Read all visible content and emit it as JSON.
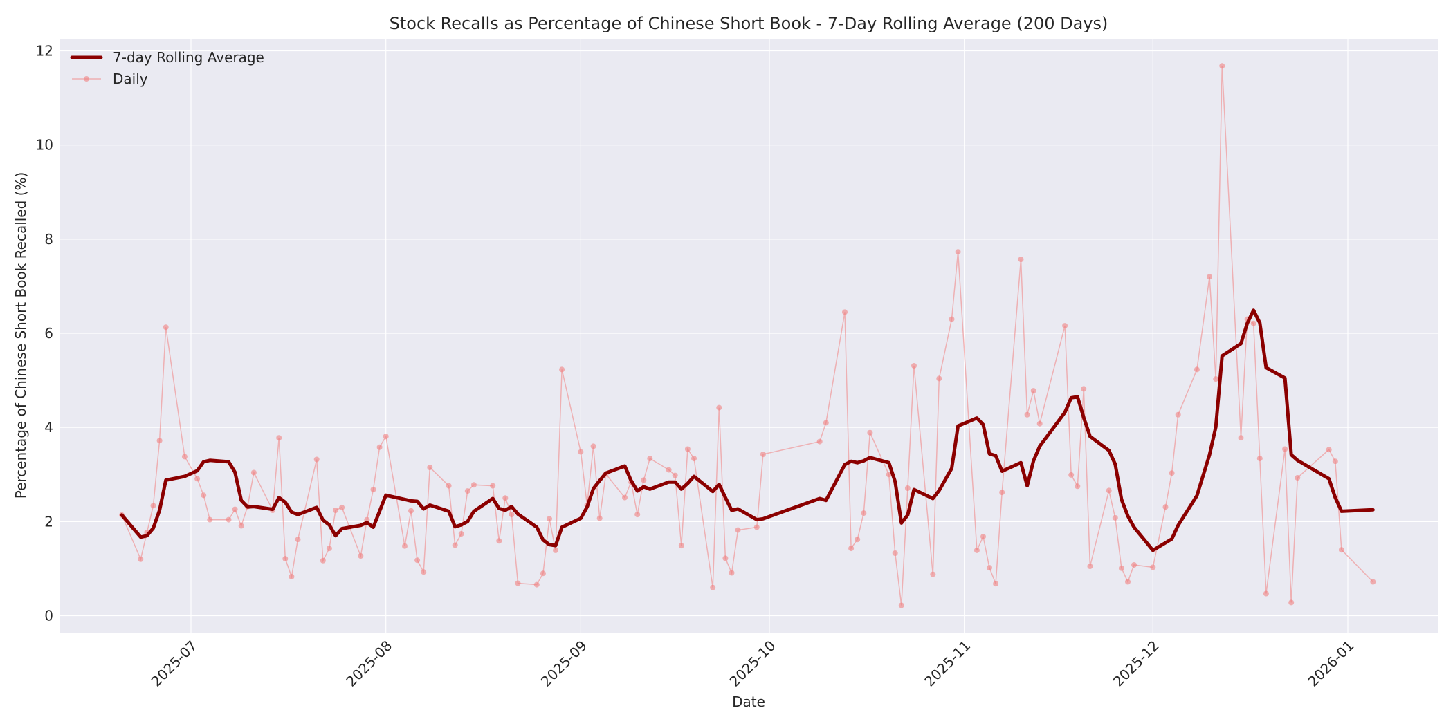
{
  "chart_data": {
    "type": "line",
    "title": "Stock Recalls as Percentage of Chinese Short Book - 7-Day Rolling Average (200 Days)",
    "xlabel": "Date",
    "ylabel": "Percentage of Chinese Short Book Recalled (%)",
    "ylim": [
      -0.35,
      12.25
    ],
    "yticks": [
      0,
      2,
      4,
      6,
      8,
      10,
      12
    ],
    "xticks": [
      {
        "label": "2025-07",
        "date": "2025-07-01"
      },
      {
        "label": "2025-08",
        "date": "2025-08-01"
      },
      {
        "label": "2025-09",
        "date": "2025-09-01"
      },
      {
        "label": "2025-10",
        "date": "2025-10-01"
      },
      {
        "label": "2025-11",
        "date": "2025-11-01"
      },
      {
        "label": "2025-12",
        "date": "2025-12-01"
      },
      {
        "label": "2026-01",
        "date": "2026-01-01"
      }
    ],
    "xlim": [
      "2025-06-10",
      "2026-01-14"
    ],
    "grid": true,
    "legend_position": "upper left",
    "series": [
      {
        "name": "7-day Rolling Average",
        "color": "#8B0000",
        "line_width": 5,
        "points": [
          [
            "2025-06-20",
            2.14
          ],
          [
            "2025-06-23",
            1.67
          ],
          [
            "2025-06-24",
            1.7
          ],
          [
            "2025-06-25",
            1.86
          ],
          [
            "2025-06-26",
            2.24
          ],
          [
            "2025-06-27",
            2.88
          ],
          [
            "2025-06-30",
            2.96
          ],
          [
            "2025-07-02",
            3.08
          ],
          [
            "2025-07-03",
            3.27
          ],
          [
            "2025-07-04",
            3.3
          ],
          [
            "2025-07-07",
            3.27
          ],
          [
            "2025-07-08",
            3.05
          ],
          [
            "2025-07-09",
            2.45
          ],
          [
            "2025-07-10",
            2.31
          ],
          [
            "2025-07-11",
            2.32
          ],
          [
            "2025-07-14",
            2.26
          ],
          [
            "2025-07-15",
            2.51
          ],
          [
            "2025-07-16",
            2.41
          ],
          [
            "2025-07-17",
            2.2
          ],
          [
            "2025-07-18",
            2.15
          ],
          [
            "2025-07-21",
            2.3
          ],
          [
            "2025-07-22",
            2.03
          ],
          [
            "2025-07-23",
            1.93
          ],
          [
            "2025-07-24",
            1.7
          ],
          [
            "2025-07-25",
            1.85
          ],
          [
            "2025-07-28",
            1.92
          ],
          [
            "2025-07-29",
            1.98
          ],
          [
            "2025-07-30",
            1.88
          ],
          [
            "2025-08-01",
            2.56
          ],
          [
            "2025-08-04",
            2.47
          ],
          [
            "2025-08-05",
            2.44
          ],
          [
            "2025-08-06",
            2.43
          ],
          [
            "2025-08-07",
            2.27
          ],
          [
            "2025-08-08",
            2.35
          ],
          [
            "2025-08-11",
            2.22
          ],
          [
            "2025-08-12",
            1.89
          ],
          [
            "2025-08-13",
            1.93
          ],
          [
            "2025-08-14",
            2.0
          ],
          [
            "2025-08-15",
            2.22
          ],
          [
            "2025-08-18",
            2.49
          ],
          [
            "2025-08-19",
            2.28
          ],
          [
            "2025-08-20",
            2.24
          ],
          [
            "2025-08-21",
            2.32
          ],
          [
            "2025-08-22",
            2.16
          ],
          [
            "2025-08-25",
            1.88
          ],
          [
            "2025-08-26",
            1.61
          ],
          [
            "2025-08-27",
            1.51
          ],
          [
            "2025-08-28",
            1.49
          ],
          [
            "2025-08-29",
            1.88
          ],
          [
            "2025-09-01",
            2.07
          ],
          [
            "2025-09-02",
            2.31
          ],
          [
            "2025-09-03",
            2.7
          ],
          [
            "2025-09-04",
            2.87
          ],
          [
            "2025-09-05",
            3.03
          ],
          [
            "2025-09-08",
            3.18
          ],
          [
            "2025-09-09",
            2.87
          ],
          [
            "2025-09-10",
            2.65
          ],
          [
            "2025-09-11",
            2.74
          ],
          [
            "2025-09-12",
            2.69
          ],
          [
            "2025-09-15",
            2.84
          ],
          [
            "2025-09-16",
            2.84
          ],
          [
            "2025-09-17",
            2.69
          ],
          [
            "2025-09-18",
            2.81
          ],
          [
            "2025-09-19",
            2.96
          ],
          [
            "2025-09-22",
            2.64
          ],
          [
            "2025-09-23",
            2.79
          ],
          [
            "2025-09-24",
            2.51
          ],
          [
            "2025-09-25",
            2.24
          ],
          [
            "2025-09-26",
            2.27
          ],
          [
            "2025-09-29",
            2.04
          ],
          [
            "2025-09-30",
            2.06
          ],
          [
            "2025-10-09",
            2.49
          ],
          [
            "2025-10-10",
            2.45
          ],
          [
            "2025-10-13",
            3.21
          ],
          [
            "2025-10-14",
            3.28
          ],
          [
            "2025-10-15",
            3.25
          ],
          [
            "2025-10-16",
            3.29
          ],
          [
            "2025-10-17",
            3.36
          ],
          [
            "2025-10-20",
            3.25
          ],
          [
            "2025-10-21",
            2.85
          ],
          [
            "2025-10-22",
            1.97
          ],
          [
            "2025-10-23",
            2.14
          ],
          [
            "2025-10-24",
            2.68
          ],
          [
            "2025-10-27",
            2.49
          ],
          [
            "2025-10-28",
            2.66
          ],
          [
            "2025-10-30",
            3.13
          ],
          [
            "2025-10-31",
            4.03
          ],
          [
            "2025-11-03",
            4.2
          ],
          [
            "2025-11-04",
            4.06
          ],
          [
            "2025-11-05",
            3.44
          ],
          [
            "2025-11-06",
            3.4
          ],
          [
            "2025-11-07",
            3.07
          ],
          [
            "2025-11-10",
            3.25
          ],
          [
            "2025-11-11",
            2.76
          ],
          [
            "2025-11-12",
            3.29
          ],
          [
            "2025-11-13",
            3.6
          ],
          [
            "2025-11-17",
            4.32
          ],
          [
            "2025-11-18",
            4.63
          ],
          [
            "2025-11-19",
            4.65
          ],
          [
            "2025-11-20",
            4.21
          ],
          [
            "2025-11-21",
            3.81
          ],
          [
            "2025-11-24",
            3.51
          ],
          [
            "2025-11-25",
            3.22
          ],
          [
            "2025-11-26",
            2.47
          ],
          [
            "2025-11-27",
            2.12
          ],
          [
            "2025-11-28",
            1.88
          ],
          [
            "2025-12-01",
            1.39
          ],
          [
            "2025-12-03",
            1.55
          ],
          [
            "2025-12-04",
            1.63
          ],
          [
            "2025-12-05",
            1.92
          ],
          [
            "2025-12-08",
            2.55
          ],
          [
            "2025-12-10",
            3.42
          ],
          [
            "2025-12-11",
            4.01
          ],
          [
            "2025-12-12",
            5.52
          ],
          [
            "2025-12-15",
            5.78
          ],
          [
            "2025-12-16",
            6.21
          ],
          [
            "2025-12-17",
            6.49
          ],
          [
            "2025-12-18",
            6.22
          ],
          [
            "2025-12-19",
            5.27
          ],
          [
            "2025-12-22",
            5.05
          ],
          [
            "2025-12-23",
            3.42
          ],
          [
            "2025-12-24",
            3.3
          ],
          [
            "2025-12-29",
            2.91
          ],
          [
            "2025-12-30",
            2.51
          ],
          [
            "2025-12-31",
            2.22
          ],
          [
            "2026-01-05",
            2.25
          ]
        ]
      },
      {
        "name": "Daily",
        "color": "#F08080",
        "line_width": 1.5,
        "marker": "circle",
        "points": [
          [
            "2025-06-20",
            2.14
          ],
          [
            "2025-06-23",
            1.2
          ],
          [
            "2025-06-24",
            1.77
          ],
          [
            "2025-06-25",
            2.34
          ],
          [
            "2025-06-26",
            3.72
          ],
          [
            "2025-06-27",
            6.13
          ],
          [
            "2025-06-30",
            3.38
          ],
          [
            "2025-07-02",
            2.91
          ],
          [
            "2025-07-03",
            2.56
          ],
          [
            "2025-07-04",
            2.04
          ],
          [
            "2025-07-07",
            2.04
          ],
          [
            "2025-07-08",
            2.26
          ],
          [
            "2025-07-09",
            1.91
          ],
          [
            "2025-07-10",
            2.32
          ],
          [
            "2025-07-11",
            3.04
          ],
          [
            "2025-07-14",
            2.24
          ],
          [
            "2025-07-15",
            3.78
          ],
          [
            "2025-07-16",
            1.21
          ],
          [
            "2025-07-17",
            0.83
          ],
          [
            "2025-07-18",
            1.62
          ],
          [
            "2025-07-21",
            3.32
          ],
          [
            "2025-07-22",
            1.17
          ],
          [
            "2025-07-23",
            1.43
          ],
          [
            "2025-07-24",
            2.24
          ],
          [
            "2025-07-25",
            2.3
          ],
          [
            "2025-07-28",
            1.27
          ],
          [
            "2025-07-29",
            2.04
          ],
          [
            "2025-07-30",
            2.68
          ],
          [
            "2025-07-31",
            3.58
          ],
          [
            "2025-08-01",
            3.81
          ],
          [
            "2025-08-04",
            1.48
          ],
          [
            "2025-08-05",
            2.23
          ],
          [
            "2025-08-06",
            1.18
          ],
          [
            "2025-08-07",
            0.93
          ],
          [
            "2025-08-08",
            3.15
          ],
          [
            "2025-08-11",
            2.76
          ],
          [
            "2025-08-12",
            1.5
          ],
          [
            "2025-08-13",
            1.74
          ],
          [
            "2025-08-14",
            2.65
          ],
          [
            "2025-08-15",
            2.78
          ],
          [
            "2025-08-18",
            2.76
          ],
          [
            "2025-08-19",
            1.59
          ],
          [
            "2025-08-20",
            2.5
          ],
          [
            "2025-08-21",
            2.15
          ],
          [
            "2025-08-22",
            0.69
          ],
          [
            "2025-08-25",
            0.66
          ],
          [
            "2025-08-26",
            0.9
          ],
          [
            "2025-08-27",
            2.06
          ],
          [
            "2025-08-28",
            1.39
          ],
          [
            "2025-08-29",
            5.23
          ],
          [
            "2025-09-01",
            3.48
          ],
          [
            "2025-09-02",
            2.35
          ],
          [
            "2025-09-03",
            3.6
          ],
          [
            "2025-09-04",
            2.07
          ],
          [
            "2025-09-05",
            3.01
          ],
          [
            "2025-09-08",
            2.51
          ],
          [
            "2025-09-09",
            2.84
          ],
          [
            "2025-09-10",
            2.15
          ],
          [
            "2025-09-11",
            2.88
          ],
          [
            "2025-09-12",
            3.34
          ],
          [
            "2025-09-15",
            3.1
          ],
          [
            "2025-09-16",
            2.98
          ],
          [
            "2025-09-17",
            1.49
          ],
          [
            "2025-09-18",
            3.54
          ],
          [
            "2025-09-19",
            3.34
          ],
          [
            "2025-09-22",
            0.6
          ],
          [
            "2025-09-23",
            4.42
          ],
          [
            "2025-09-24",
            1.22
          ],
          [
            "2025-09-25",
            0.91
          ],
          [
            "2025-09-26",
            1.82
          ],
          [
            "2025-09-29",
            1.88
          ],
          [
            "2025-09-30",
            3.43
          ],
          [
            "2025-10-09",
            3.7
          ],
          [
            "2025-10-10",
            4.1
          ],
          [
            "2025-10-13",
            6.45
          ],
          [
            "2025-10-14",
            1.43
          ],
          [
            "2025-10-15",
            1.62
          ],
          [
            "2025-10-16",
            2.18
          ],
          [
            "2025-10-17",
            3.89
          ],
          [
            "2025-10-20",
            3.0
          ],
          [
            "2025-10-21",
            1.33
          ],
          [
            "2025-10-22",
            0.22
          ],
          [
            "2025-10-23",
            2.71
          ],
          [
            "2025-10-24",
            5.31
          ],
          [
            "2025-10-27",
            0.88
          ],
          [
            "2025-10-28",
            5.04
          ],
          [
            "2025-10-30",
            6.3
          ],
          [
            "2025-10-31",
            7.73
          ],
          [
            "2025-11-03",
            1.39
          ],
          [
            "2025-11-04",
            1.68
          ],
          [
            "2025-11-05",
            1.02
          ],
          [
            "2025-11-06",
            0.68
          ],
          [
            "2025-11-07",
            2.62
          ],
          [
            "2025-11-10",
            7.57
          ],
          [
            "2025-11-11",
            4.27
          ],
          [
            "2025-11-12",
            4.78
          ],
          [
            "2025-11-13",
            4.08
          ],
          [
            "2025-11-17",
            6.16
          ],
          [
            "2025-11-18",
            2.99
          ],
          [
            "2025-11-19",
            2.75
          ],
          [
            "2025-11-20",
            4.82
          ],
          [
            "2025-11-21",
            1.05
          ],
          [
            "2025-11-24",
            2.66
          ],
          [
            "2025-11-25",
            2.08
          ],
          [
            "2025-11-26",
            1.01
          ],
          [
            "2025-11-27",
            0.72
          ],
          [
            "2025-11-28",
            1.08
          ],
          [
            "2025-12-01",
            1.03
          ],
          [
            "2025-12-03",
            2.31
          ],
          [
            "2025-12-04",
            3.03
          ],
          [
            "2025-12-05",
            4.27
          ],
          [
            "2025-12-08",
            5.23
          ],
          [
            "2025-12-10",
            7.2
          ],
          [
            "2025-12-11",
            5.03
          ],
          [
            "2025-12-12",
            11.68
          ],
          [
            "2025-12-15",
            3.78
          ],
          [
            "2025-12-16",
            6.3
          ],
          [
            "2025-12-17",
            6.21
          ],
          [
            "2025-12-18",
            3.34
          ],
          [
            "2025-12-19",
            0.47
          ],
          [
            "2025-12-22",
            3.54
          ],
          [
            "2025-12-23",
            0.28
          ],
          [
            "2025-12-24",
            2.93
          ],
          [
            "2025-12-29",
            3.53
          ],
          [
            "2025-12-30",
            3.28
          ],
          [
            "2025-12-31",
            1.4
          ],
          [
            "2026-01-05",
            0.72
          ]
        ]
      }
    ]
  },
  "style": {
    "plot_background": "#EAEAF2",
    "grid_color": "#FFFFFF",
    "text_color": "#262626"
  }
}
